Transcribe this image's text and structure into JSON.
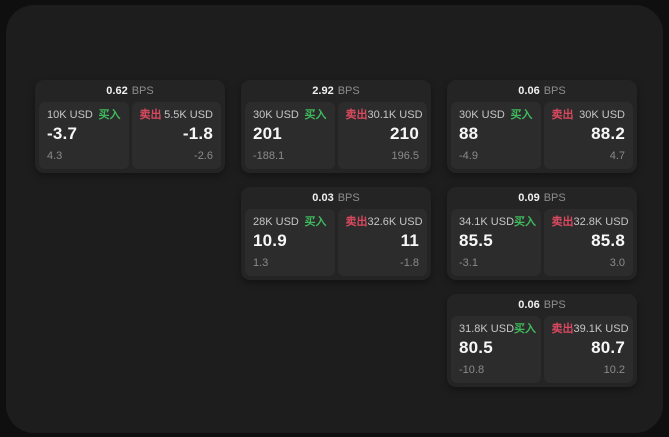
{
  "labels": {
    "bps": "BPS",
    "buy": "买入",
    "sell": "卖出"
  },
  "colors": {
    "page_bg": "#0f0f0f",
    "surface_bg": "#1d1d1d",
    "card_bg": "#242424",
    "tile_bg": "#2c2c2c",
    "buy_green": "#3eb95c",
    "sell_red": "#d9495f"
  },
  "cards": [
    {
      "bps": "0.62",
      "buy": {
        "amount": "10K USD",
        "price": "-3.7",
        "change": "4.3"
      },
      "sell": {
        "amount": "5.5K USD",
        "price": "-1.8",
        "change": "-2.6"
      }
    },
    {
      "bps": "2.92",
      "buy": {
        "amount": "30K USD",
        "price": "201",
        "change": "-188.1"
      },
      "sell": {
        "amount": "30.1K USD",
        "price": "210",
        "change": "196.5"
      }
    },
    {
      "bps": "0.06",
      "buy": {
        "amount": "30K USD",
        "price": "88",
        "change": "-4.9"
      },
      "sell": {
        "amount": "30K USD",
        "price": "88.2",
        "change": "4.7"
      }
    },
    {
      "bps": "0.03",
      "buy": {
        "amount": "28K USD",
        "price": "10.9",
        "change": "1.3"
      },
      "sell": {
        "amount": "32.6K USD",
        "price": "11",
        "change": "-1.8"
      }
    },
    {
      "bps": "0.09",
      "buy": {
        "amount": "34.1K USD",
        "price": "85.5",
        "change": "-3.1"
      },
      "sell": {
        "amount": "32.8K USD",
        "price": "85.8",
        "change": "3.0"
      }
    },
    {
      "bps": "0.06",
      "buy": {
        "amount": "31.8K USD",
        "price": "80.5",
        "change": "-10.8"
      },
      "sell": {
        "amount": "39.1K USD",
        "price": "80.7",
        "change": "10.2"
      }
    }
  ]
}
